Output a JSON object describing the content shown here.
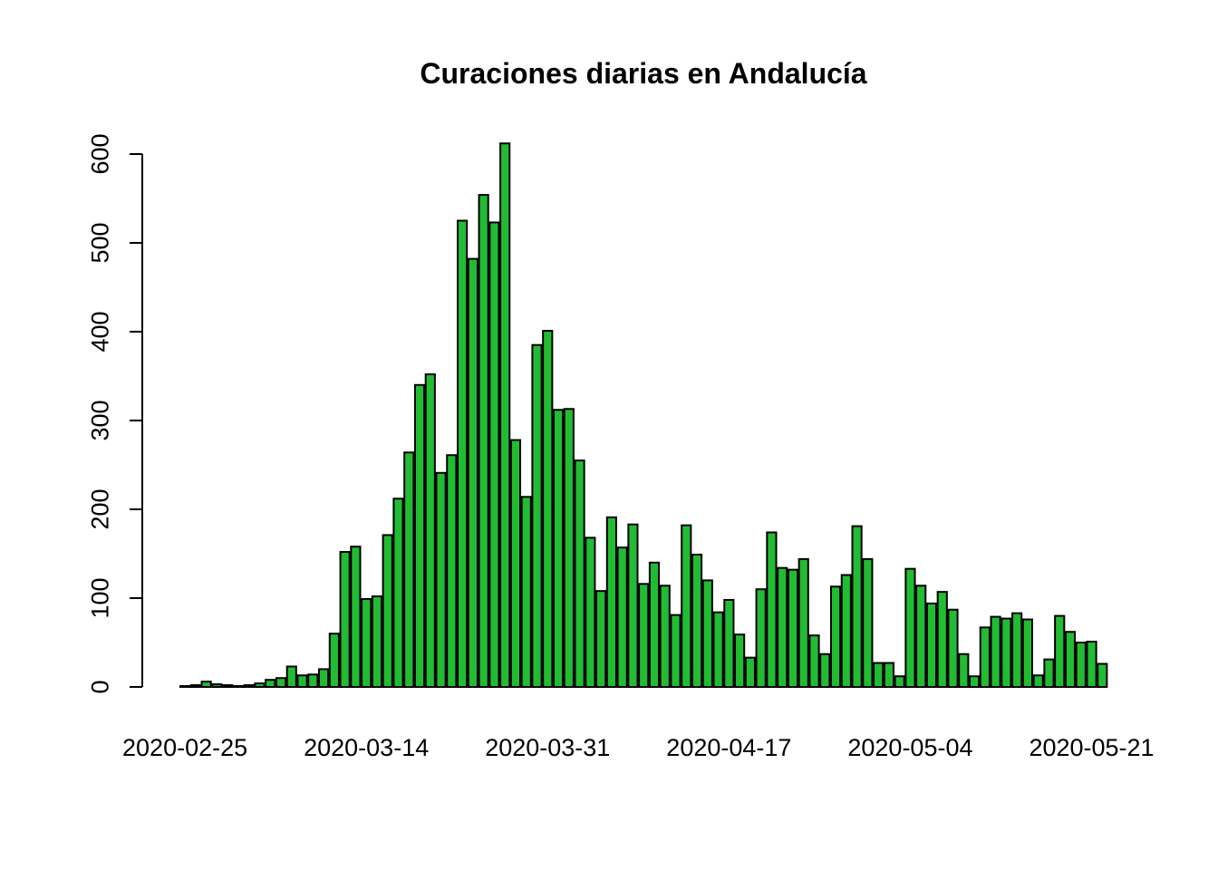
{
  "chart_data": {
    "type": "bar",
    "title": "Curaciones diarias en Andalucía",
    "xlabel": "",
    "ylabel": "",
    "ylim": [
      0,
      620
    ],
    "yticks": [
      0,
      100,
      200,
      300,
      400,
      500,
      600
    ],
    "xtick_labels": [
      "2020-02-25",
      "2020-03-14",
      "2020-03-31",
      "2020-04-17",
      "2020-05-04",
      "2020-05-21"
    ],
    "bar_color": "#22bb33",
    "edge_color": "#000000",
    "grid": false,
    "values": [
      1,
      2,
      6,
      3,
      2,
      1,
      2,
      4,
      8,
      10,
      23,
      13,
      14,
      20,
      60,
      152,
      158,
      99,
      102,
      171,
      212,
      264,
      340,
      352,
      241,
      261,
      525,
      482,
      554,
      523,
      612,
      278,
      214,
      385,
      401,
      312,
      313,
      255,
      168,
      108,
      191,
      157,
      183,
      116,
      140,
      114,
      81,
      182,
      149,
      120,
      84,
      98,
      59,
      33,
      110,
      174,
      134,
      132,
      144,
      58,
      37,
      113,
      126,
      181,
      144,
      27,
      27,
      12,
      133,
      114,
      94,
      107,
      87,
      37,
      12,
      67,
      79,
      77,
      83,
      76,
      13,
      31,
      80,
      62,
      50,
      51,
      26
    ]
  }
}
